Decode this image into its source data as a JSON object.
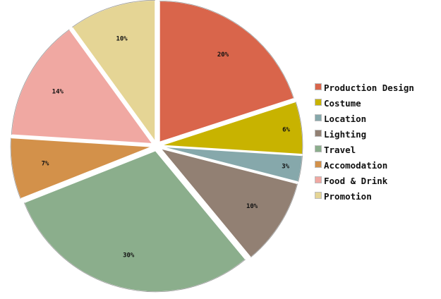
{
  "chart_data": {
    "type": "pie",
    "categories": [
      "Production Design",
      "Costume",
      "Location",
      "Lighting",
      "Travel",
      "Accomodation",
      "Food & Drink",
      "Promotion"
    ],
    "values": [
      20,
      6,
      3,
      10,
      30,
      7,
      14,
      10
    ],
    "labels": [
      "20%",
      "6%",
      "3%",
      "10%",
      "30%",
      "7%",
      "14%",
      "10%"
    ],
    "colors": [
      "#D9654B",
      "#C8B300",
      "#86A8AB",
      "#928073",
      "#8BAE8C",
      "#D3914A",
      "#F0A8A2",
      "#E5D595"
    ],
    "legend_position": "right"
  }
}
